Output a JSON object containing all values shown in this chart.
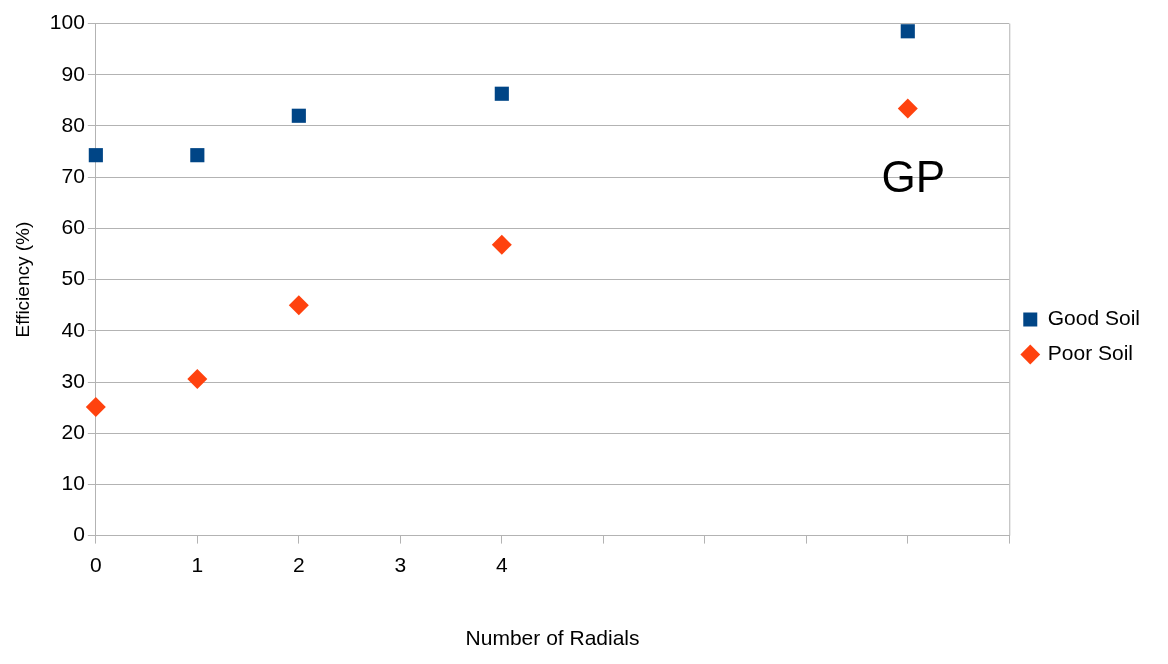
{
  "chart_data": {
    "type": "scatter",
    "xlabel": "Number of Radials",
    "ylabel": "Efficiency (%)",
    "series": [
      {
        "name": "Good Soil",
        "color": "#004586",
        "marker": "square",
        "x": [
          0,
          1,
          2,
          4,
          8
        ],
        "values": [
          74.3,
          74.3,
          82,
          86.3,
          98.5
        ]
      },
      {
        "name": "Poor Soil",
        "color": "#ff420e",
        "marker": "diamond",
        "x": [
          0,
          1,
          2,
          4,
          8
        ],
        "values": [
          25.1,
          30.6,
          45,
          56.8,
          83.4
        ]
      }
    ],
    "xlim": [
      0,
      9
    ],
    "xticks": [
      0,
      1,
      2,
      3,
      4,
      {
        "value": 5,
        "label": null
      },
      {
        "value": 6,
        "label": null
      },
      {
        "value": 7,
        "label": null
      },
      {
        "value": 8,
        "label": null
      },
      {
        "value": 9,
        "label": null
      }
    ],
    "ylim": [
      0,
      100
    ],
    "yticks": [
      0,
      10,
      20,
      30,
      40,
      50,
      60,
      70,
      80,
      90,
      100
    ],
    "grid": "y",
    "legend": "right",
    "annotations": [
      "GP"
    ]
  }
}
